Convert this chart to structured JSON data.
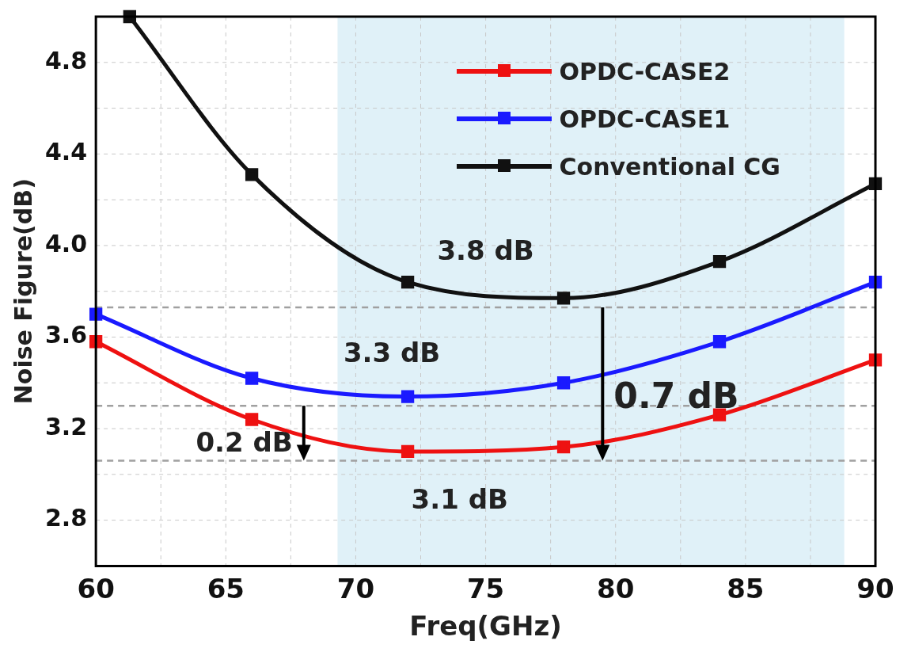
{
  "chart_data": {
    "type": "line",
    "xlabel": "Freq(GHz)",
    "ylabel": "Noise Figure(dB)",
    "xlim": [
      60,
      90
    ],
    "xticks": [
      60,
      {
        "value": 62.5,
        "label": null
      },
      65,
      {
        "value": 67.5,
        "label": null
      },
      70,
      {
        "value": 72.5,
        "label": null
      },
      75,
      {
        "value": 77.5,
        "label": null
      },
      80,
      {
        "value": 82.5,
        "label": null
      },
      85,
      {
        "value": 87.5,
        "label": null
      },
      90
    ],
    "ylim": [
      2.6,
      5.0
    ],
    "yticks": [
      {
        "value": 2.6,
        "label": null
      },
      {
        "value": 2.8,
        "label": "2.8"
      },
      {
        "value": 3.0,
        "label": null
      },
      {
        "value": 3.2,
        "label": "3.2"
      },
      {
        "value": 3.4,
        "label": null
      },
      {
        "value": 3.6,
        "label": "3.6"
      },
      {
        "value": 3.8,
        "label": null
      },
      {
        "value": 4.0,
        "label": "4.0"
      },
      {
        "value": 4.2,
        "label": null
      },
      {
        "value": 4.4,
        "label": "4.4"
      },
      {
        "value": 4.6,
        "label": null
      },
      {
        "value": 4.8,
        "label": "4.8"
      }
    ],
    "grid": true,
    "legend": "top right",
    "marker": "square",
    "line_style": "solid",
    "series": [
      {
        "name": "OPDC-CASE2",
        "color": "#ee1111",
        "x": [
          60,
          66,
          72,
          78,
          84,
          90
        ],
        "values": [
          3.58,
          3.24,
          3.1,
          3.12,
          3.26,
          3.5
        ]
      },
      {
        "name": "OPDC-CASE1",
        "color": "#1a1aff",
        "x": [
          60,
          66,
          72,
          78,
          84,
          90
        ],
        "values": [
          3.7,
          3.42,
          3.34,
          3.4,
          3.58,
          3.84
        ]
      },
      {
        "name": "Conventional CG",
        "color": "#111111",
        "x": [
          61.3,
          66,
          72,
          78,
          84,
          90
        ],
        "values": [
          5.0,
          4.31,
          3.84,
          3.77,
          3.93,
          4.27
        ]
      }
    ],
    "bands": [
      {
        "axis": "x",
        "from": 69.3,
        "to": 88.8,
        "color": "#e0f1f8"
      }
    ],
    "ref_lines": [
      {
        "axis": "y",
        "value": 3.73,
        "color": "#a0a0a0",
        "line_style": "dashed"
      },
      {
        "axis": "y",
        "value": 3.3,
        "color": "#a0a0a0",
        "line_style": "dashed"
      },
      {
        "axis": "y",
        "value": 3.06,
        "color": "#a0a0a0",
        "line_style": "dashed"
      }
    ],
    "annotations": [
      {
        "text": "3.8 dB",
        "x": 75,
        "y": 3.76
      },
      {
        "text": "3.3 dB",
        "x": 72,
        "y": 3.33
      },
      {
        "text": "3.1 dB",
        "x": 74,
        "y": 3.09
      },
      {
        "text": "0.2 dB",
        "x": 68,
        "y": 3.06
      },
      {
        "text": "0.7 dB",
        "x": 79.5,
        "y": 3.06
      }
    ]
  }
}
